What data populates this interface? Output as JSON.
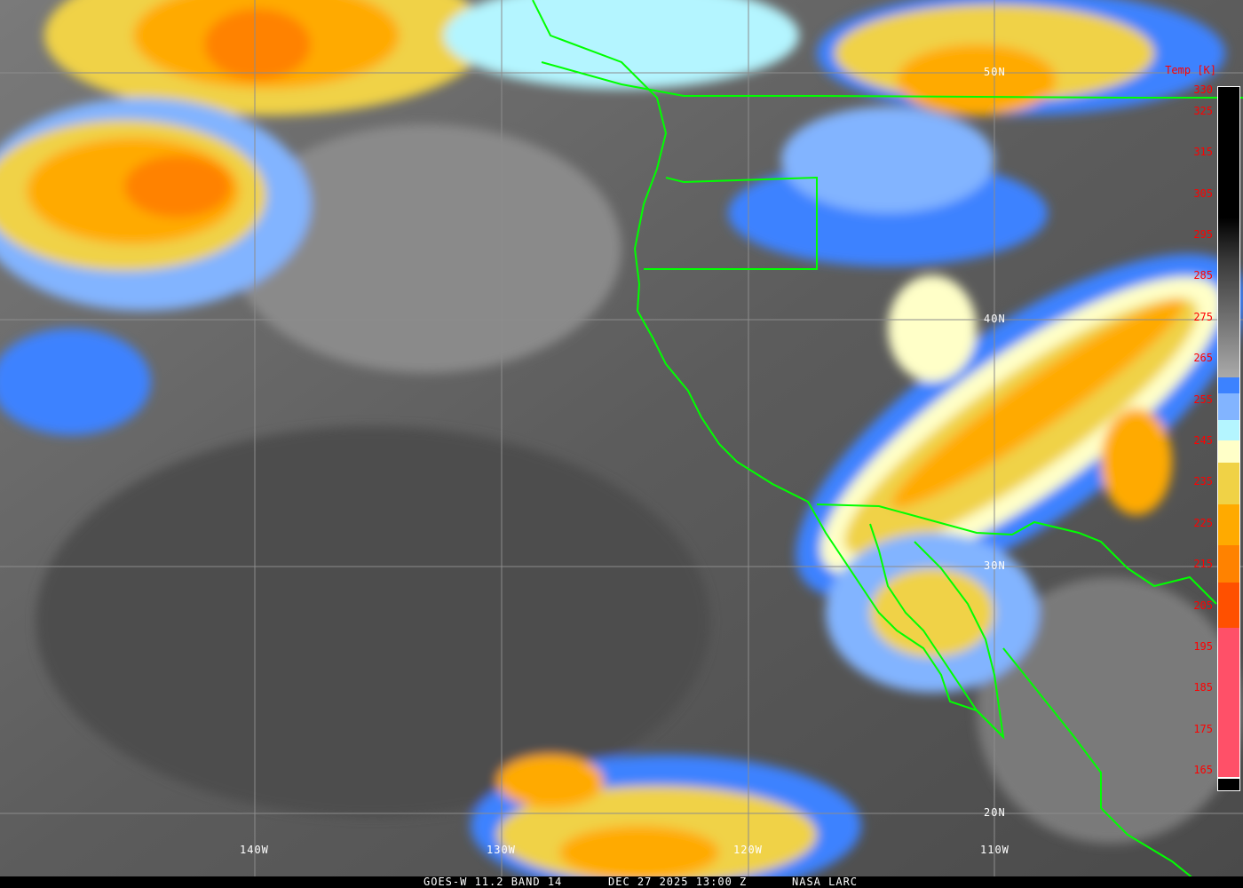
{
  "caption": {
    "product": "GOES-W 11.2 BAND 14",
    "datetime": "DEC 27 2025 13:00 Z",
    "source": "NASA LARC"
  },
  "grid": {
    "latitudes": [
      "50N",
      "40N",
      "30N",
      "20N"
    ],
    "longitudes": [
      "140W",
      "130W",
      "120W",
      "110W"
    ]
  },
  "colorbar": {
    "title": "Temp [K]",
    "ticks": [
      "330",
      "325",
      "315",
      "305",
      "295",
      "285",
      "275",
      "265",
      "255",
      "245",
      "235",
      "225",
      "215",
      "205",
      "195",
      "185",
      "175",
      "165"
    ],
    "colors": {
      "blue": "#3c82ff",
      "light_blue": "#82b4ff",
      "cyan": "#b4f5ff",
      "pale_yellow": "#ffffc8",
      "yellow": "#f0d246",
      "amber": "#ffaa00",
      "orange": "#ff8200",
      "red_orange": "#ff5000",
      "pink": "#ff5068"
    }
  },
  "colors": {
    "boundaries": "#00ff00",
    "grid": "#8c8c8c",
    "tick_labels": "#ff0000"
  }
}
